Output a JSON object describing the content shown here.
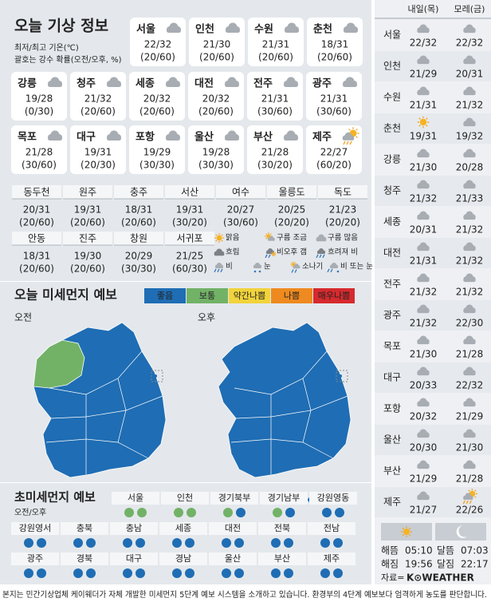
{
  "header": {
    "title": "오늘 기상 정보",
    "note1": "최저/최고 기온(℃)",
    "note2": "괄호는 강수 확률(오전/오후, %)"
  },
  "cities": [
    {
      "name": "서울",
      "icon": "cloud",
      "temp": "22/32",
      "rain": "(20/60)"
    },
    {
      "name": "인천",
      "icon": "cloud",
      "temp": "21/30",
      "rain": "(20/60)"
    },
    {
      "name": "수원",
      "icon": "cloud",
      "temp": "21/31",
      "rain": "(20/60)"
    },
    {
      "name": "춘천",
      "icon": "cloud",
      "temp": "18/31",
      "rain": "(20/60)"
    },
    {
      "name": "강릉",
      "icon": "cloud",
      "temp": "19/28",
      "rain": "(0/30)"
    },
    {
      "name": "청주",
      "icon": "cloud",
      "temp": "21/32",
      "rain": "(20/60)"
    },
    {
      "name": "세종",
      "icon": "cloud",
      "temp": "20/32",
      "rain": "(20/60)"
    },
    {
      "name": "대전",
      "icon": "cloud",
      "temp": "20/32",
      "rain": "(20/60)"
    },
    {
      "name": "전주",
      "icon": "cloud",
      "temp": "21/31",
      "rain": "(30/60)"
    },
    {
      "name": "광주",
      "icon": "cloud",
      "temp": "21/31",
      "rain": "(30/60)"
    },
    {
      "name": "목포",
      "icon": "cloud",
      "temp": "21/28",
      "rain": "(30/60)"
    },
    {
      "name": "대구",
      "icon": "cloud",
      "temp": "19/31",
      "rain": "(20/30)"
    },
    {
      "name": "포항",
      "icon": "cloud",
      "temp": "19/29",
      "rain": "(30/30)"
    },
    {
      "name": "울산",
      "icon": "cloud",
      "temp": "19/28",
      "rain": "(30/30)"
    },
    {
      "name": "부산",
      "icon": "cloud",
      "temp": "21/28",
      "rain": "(30/20)"
    },
    {
      "name": "제주",
      "icon": "sunrain",
      "temp": "22/27",
      "rain": "(60/20)"
    }
  ],
  "small_cities": [
    {
      "name": "동두천",
      "temp": "20/31",
      "rain": "(20/60)"
    },
    {
      "name": "원주",
      "temp": "19/31",
      "rain": "(20/60)"
    },
    {
      "name": "충주",
      "temp": "18/31",
      "rain": "(20/60)"
    },
    {
      "name": "서산",
      "temp": "19/31",
      "rain": "(30/20)"
    },
    {
      "name": "여수",
      "temp": "20/27",
      "rain": "(30/60)"
    },
    {
      "name": "울릉도",
      "temp": "20/25",
      "rain": "(20/20)"
    },
    {
      "name": "독도",
      "temp": "21/23",
      "rain": "(20/20)"
    },
    {
      "name": "안동",
      "temp": "18/31",
      "rain": "(20/60)"
    },
    {
      "name": "진주",
      "temp": "19/30",
      "rain": "(20/60)"
    },
    {
      "name": "창원",
      "temp": "20/29",
      "rain": "(30/30)"
    },
    {
      "name": "서귀포",
      "temp": "21/25",
      "rain": "(60/30)"
    }
  ],
  "legend": [
    {
      "icon": "sun",
      "label": "맑음"
    },
    {
      "icon": "suncloud",
      "label": "구름 조금"
    },
    {
      "icon": "cloud",
      "label": "구름 많음"
    },
    {
      "icon": "overcast",
      "label": "흐림"
    },
    {
      "icon": "rainclear",
      "label": "비오후 갬"
    },
    {
      "icon": "cloudrain",
      "label": "흐려져 비"
    },
    {
      "icon": "rain",
      "label": "비"
    },
    {
      "icon": "snow",
      "label": "눈"
    },
    {
      "icon": "shower",
      "label": "소나기"
    },
    {
      "icon": "rainsnow",
      "label": "비 또는 눈"
    }
  ],
  "dust": {
    "title": "오늘 미세먼지 예보",
    "am": "오전",
    "pm": "오후",
    "levels": [
      {
        "label": "좋음",
        "color": "#1f6db4"
      },
      {
        "label": "보통",
        "color": "#72b267"
      },
      {
        "label": "약간나쁨",
        "color": "#f1d33b"
      },
      {
        "label": "나쁨",
        "color": "#ee8a1f"
      },
      {
        "label": "매우나쁨",
        "color": "#d62a2e"
      }
    ]
  },
  "ultrafine": {
    "title": "초미세먼지 예보",
    "subtitle": "오전/오후",
    "regions": [
      {
        "name": "서울",
        "am": "#72b267",
        "pm": "#72b267"
      },
      {
        "name": "인천",
        "am": "#72b267",
        "pm": "#72b267"
      },
      {
        "name": "경기북부",
        "am": "#72b267",
        "pm": "#1f6db4"
      },
      {
        "name": "경기남부",
        "am": "#72b267",
        "pm": "#1f6db4"
      },
      {
        "name": "강원영동",
        "am": "#1f6db4",
        "pm": "#1f6db4"
      },
      {
        "name": "강원영서",
        "am": "#1f6db4",
        "pm": "#1f6db4"
      },
      {
        "name": "충북",
        "am": "#1f6db4",
        "pm": "#1f6db4"
      },
      {
        "name": "충남",
        "am": "#1f6db4",
        "pm": "#1f6db4"
      },
      {
        "name": "세종",
        "am": "#1f6db4",
        "pm": "#1f6db4"
      },
      {
        "name": "대전",
        "am": "#1f6db4",
        "pm": "#1f6db4"
      },
      {
        "name": "전북",
        "am": "#1f6db4",
        "pm": "#1f6db4"
      },
      {
        "name": "전남",
        "am": "#1f6db4",
        "pm": "#1f6db4"
      },
      {
        "name": "광주",
        "am": "#1f6db4",
        "pm": "#1f6db4"
      },
      {
        "name": "경북",
        "am": "#1f6db4",
        "pm": "#1f6db4"
      },
      {
        "name": "대구",
        "am": "#1f6db4",
        "pm": "#1f6db4"
      },
      {
        "name": "경남",
        "am": "#1f6db4",
        "pm": "#1f6db4"
      },
      {
        "name": "울산",
        "am": "#1f6db4",
        "pm": "#1f6db4"
      },
      {
        "name": "부산",
        "am": "#1f6db4",
        "pm": "#1f6db4"
      },
      {
        "name": "제주",
        "am": "#1f6db4",
        "pm": "#1f6db4"
      }
    ]
  },
  "forecast": {
    "headers": [
      "내일(목)",
      "모레(금)"
    ],
    "rows": [
      {
        "name": "서울",
        "d1": {
          "icon": "cloud",
          "temp": "22/32"
        },
        "d2": {
          "icon": "cloud",
          "temp": "22/32"
        }
      },
      {
        "name": "인천",
        "d1": {
          "icon": "cloud",
          "temp": "21/29"
        },
        "d2": {
          "icon": "cloud",
          "temp": "20/31"
        }
      },
      {
        "name": "수원",
        "d1": {
          "icon": "cloud",
          "temp": "21/31"
        },
        "d2": {
          "icon": "cloud",
          "temp": "21/32"
        }
      },
      {
        "name": "춘천",
        "d1": {
          "icon": "sun",
          "temp": "19/31"
        },
        "d2": {
          "icon": "cloud",
          "temp": "19/32"
        }
      },
      {
        "name": "강릉",
        "d1": {
          "icon": "cloud",
          "temp": "21/30"
        },
        "d2": {
          "icon": "cloud",
          "temp": "20/28"
        }
      },
      {
        "name": "청주",
        "d1": {
          "icon": "cloud",
          "temp": "21/32"
        },
        "d2": {
          "icon": "cloud",
          "temp": "21/33"
        }
      },
      {
        "name": "세종",
        "d1": {
          "icon": "cloud",
          "temp": "20/31"
        },
        "d2": {
          "icon": "cloud",
          "temp": "21/32"
        }
      },
      {
        "name": "대전",
        "d1": {
          "icon": "cloud",
          "temp": "21/31"
        },
        "d2": {
          "icon": "cloud",
          "temp": "21/32"
        }
      },
      {
        "name": "전주",
        "d1": {
          "icon": "cloud",
          "temp": "21/32"
        },
        "d2": {
          "icon": "cloud",
          "temp": "21/32"
        }
      },
      {
        "name": "광주",
        "d1": {
          "icon": "cloud",
          "temp": "21/32"
        },
        "d2": {
          "icon": "cloud",
          "temp": "22/30"
        }
      },
      {
        "name": "목포",
        "d1": {
          "icon": "cloud",
          "temp": "21/30"
        },
        "d2": {
          "icon": "cloud",
          "temp": "21/28"
        }
      },
      {
        "name": "대구",
        "d1": {
          "icon": "cloud",
          "temp": "20/33"
        },
        "d2": {
          "icon": "cloud",
          "temp": "22/32"
        }
      },
      {
        "name": "포항",
        "d1": {
          "icon": "cloud",
          "temp": "20/32"
        },
        "d2": {
          "icon": "cloud",
          "temp": "21/29"
        }
      },
      {
        "name": "울산",
        "d1": {
          "icon": "cloud",
          "temp": "20/30"
        },
        "d2": {
          "icon": "cloud",
          "temp": "21/30"
        }
      },
      {
        "name": "부산",
        "d1": {
          "icon": "cloud",
          "temp": "21/29"
        },
        "d2": {
          "icon": "cloud",
          "temp": "21/28"
        }
      },
      {
        "name": "제주",
        "d1": {
          "icon": "cloud",
          "temp": "21/27"
        },
        "d2": {
          "icon": "sunrain",
          "temp": "22/26"
        }
      }
    ]
  },
  "astro": [
    {
      "label": "해뜸",
      "time": "05:10"
    },
    {
      "label": "해짐",
      "time": "19:56"
    },
    {
      "label": "달뜸",
      "time": "07:03"
    },
    {
      "label": "달짐",
      "time": "22:17"
    }
  ],
  "source": {
    "label": "자료=",
    "brand": "K⊙WEATHER"
  },
  "footer": "본지는 민간기상업체 케이웨더가 자체 개발한 미세먼지 5단계 예보 시스템을 소개하고 있습니다. 환경부의 4단계 예보보다 엄격하게 농도를 판단합니다."
}
